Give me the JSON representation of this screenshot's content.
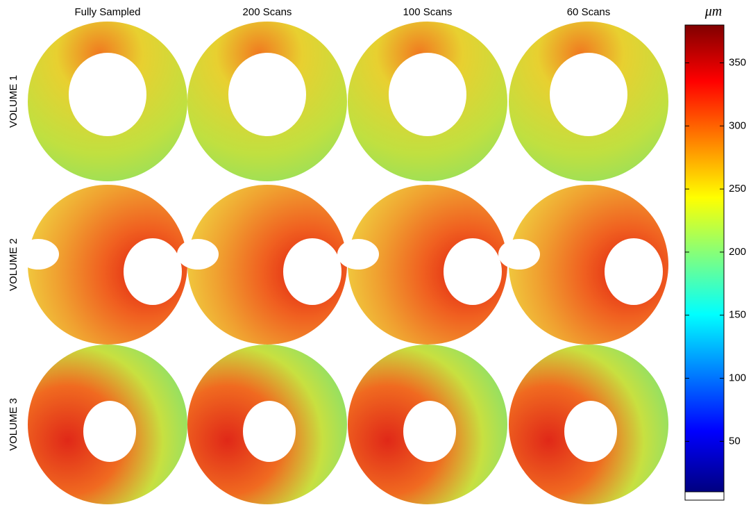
{
  "figure": {
    "column_titles": [
      "Fully Sampled",
      "200 Scans",
      "100 Scans",
      "60 Scans"
    ],
    "row_labels": [
      "VOLUME 1",
      "VOLUME 2",
      "VOLUME 3"
    ],
    "colorbar": {
      "label": "μm",
      "lim": [
        10,
        380
      ],
      "ticks": [
        50,
        100,
        150,
        200,
        250,
        300,
        350
      ]
    }
  }
}
